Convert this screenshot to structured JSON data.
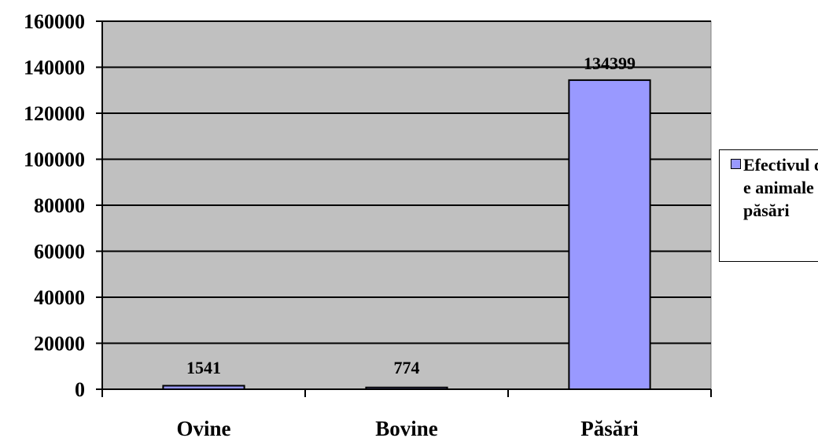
{
  "chart_data": {
    "type": "bar",
    "categories": [
      "Ovine",
      "Bovine",
      "Păsări"
    ],
    "series": [
      {
        "name": "Efectivul de animale și păsări",
        "values": [
          1541,
          774,
          134399
        ]
      }
    ],
    "data_labels": [
      "1541",
      "774",
      "134399"
    ],
    "y_ticks": [
      "0",
      "20000",
      "40000",
      "60000",
      "80000",
      "100000",
      "120000",
      "140000",
      "160000"
    ],
    "ylim": [
      0,
      160000
    ],
    "xlabel": "",
    "ylabel": "",
    "grid": true,
    "legend_position": "right",
    "colors": {
      "bar": "#9999ff",
      "plot_background": "#c0c0c0",
      "gridline": "#000000"
    }
  }
}
